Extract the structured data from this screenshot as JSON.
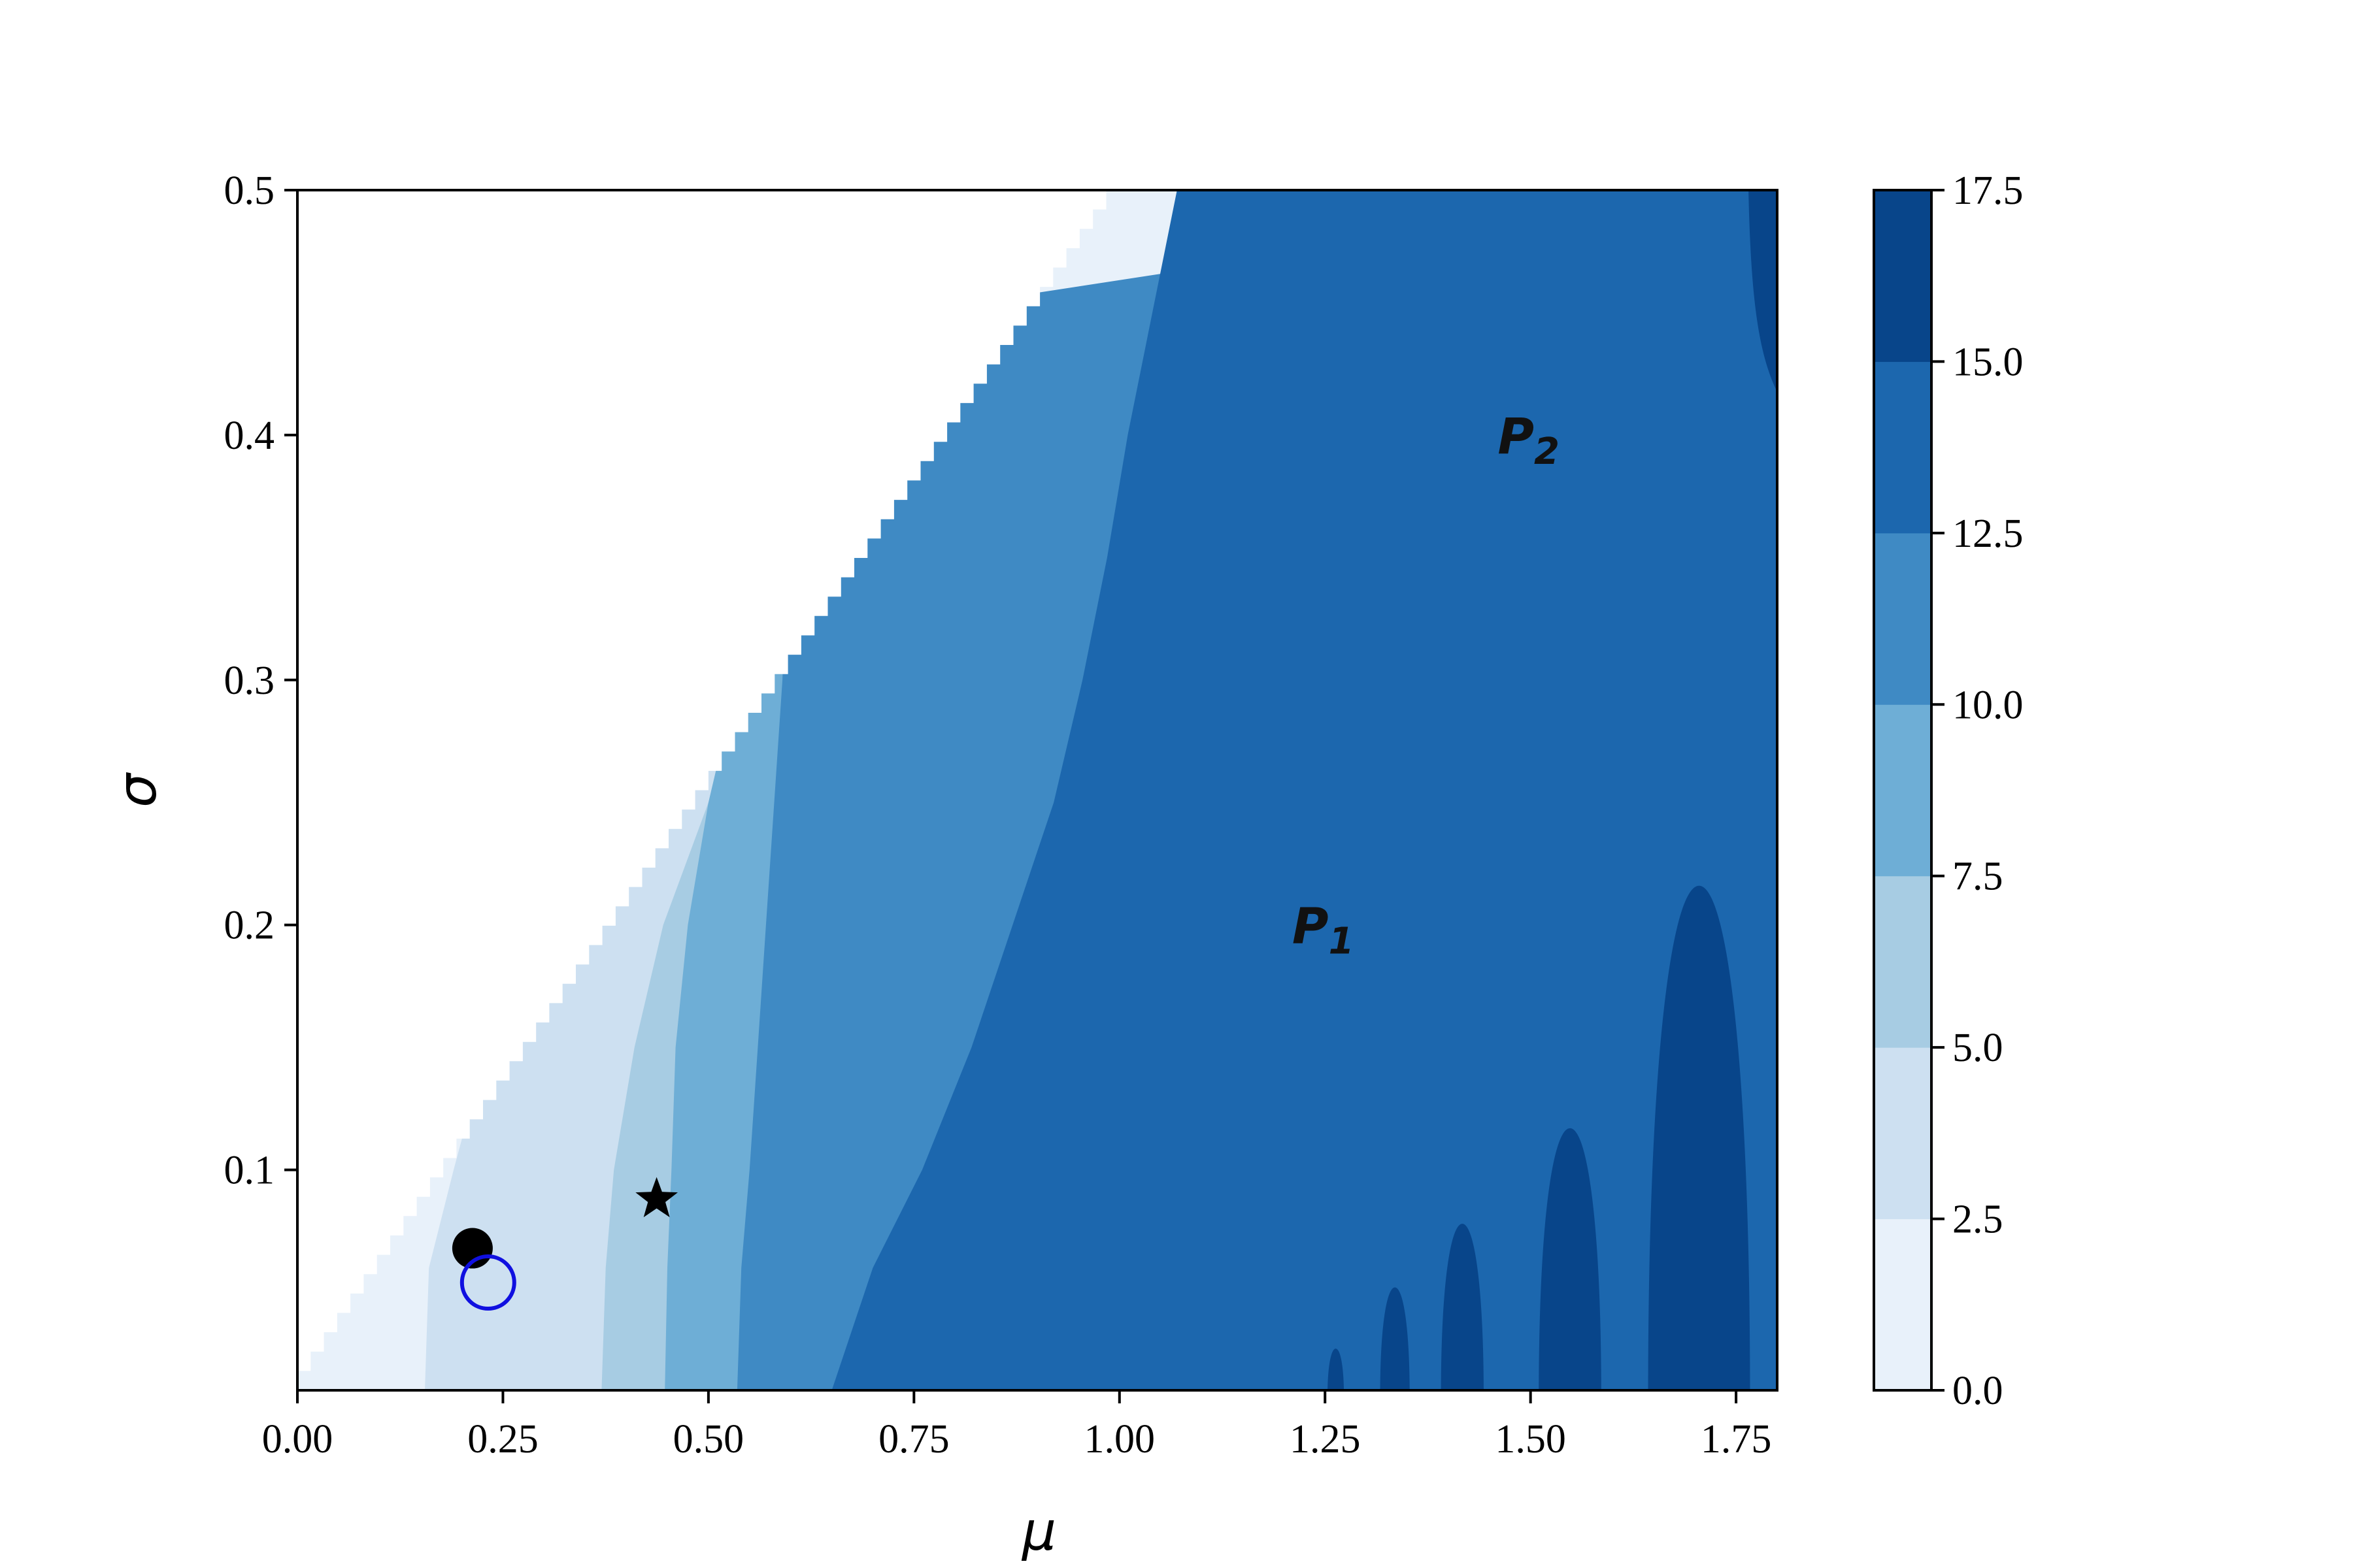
{
  "chart_data": {
    "type": "contourf",
    "title": "",
    "xlabel": "μ",
    "ylabel": "σ",
    "xlim": [
      0.0,
      1.8
    ],
    "ylim": [
      0.01,
      0.5
    ],
    "x_ticks": [
      0.0,
      0.25,
      0.5,
      0.75,
      1.0,
      1.25,
      1.5,
      1.75
    ],
    "x_tick_labels": [
      "0.00",
      "0.25",
      "0.50",
      "0.75",
      "1.00",
      "1.25",
      "1.50",
      "1.75"
    ],
    "y_ticks": [
      0.1,
      0.2,
      0.3,
      0.4,
      0.5
    ],
    "y_tick_labels": [
      "0.1",
      "0.2",
      "0.3",
      "0.4",
      "0.5"
    ],
    "grid": false,
    "colormap": "Blues",
    "colorbar": {
      "levels": [
        0.0,
        2.5,
        5.0,
        7.5,
        10.0,
        12.5,
        15.0,
        17.5
      ],
      "tick_labels": [
        "0.0",
        "2.5",
        "5.0",
        "7.5",
        "10.0",
        "12.5",
        "15.0",
        "17.5"
      ],
      "colors": [
        "#e8f1fa",
        "#cde0f1",
        "#a7cce3",
        "#6eaed6",
        "#3f8ac4",
        "#1c67ae",
        "#08458a"
      ],
      "placement": "right"
    },
    "boundary": [
      [
        0.0,
        0.01
      ],
      [
        1.0,
        0.5
      ]
    ],
    "contours": [
      {
        "level": 2.5,
        "x": [
          0.155,
          0.16,
          0.19,
          0.23,
          0.275,
          0.305,
          0.333
        ]
      },
      {
        "level": 5.0,
        "x": [
          0.37,
          0.375,
          0.385,
          0.41,
          0.445,
          0.5
        ]
      },
      {
        "level": 7.5,
        "x": [
          0.447,
          0.45,
          0.455,
          0.46,
          0.475,
          0.5,
          0.535,
          0.5633
        ]
      },
      {
        "level": 10.0,
        "x": [
          0.535,
          0.54,
          0.55,
          0.56,
          0.57,
          0.58,
          0.59,
          0.595,
          0.597,
          0.7433
        ]
      },
      {
        "level": 12.5,
        "x": [
          0.65,
          0.7,
          0.76,
          0.82,
          0.87,
          0.92,
          0.955,
          0.985,
          1.01,
          1.04,
          1.07
        ]
      },
      {
        "y": [
          0.01,
          0.06,
          0.1,
          0.15,
          0.2,
          0.25,
          0.3,
          0.35,
          0.4,
          0.45,
          0.5
        ]
      }
    ],
    "peaks": [
      {
        "cx": 1.263,
        "half_width": 0.01,
        "top": 0.027
      },
      {
        "cx": 1.335,
        "half_width": 0.018,
        "top": 0.052
      },
      {
        "cx": 1.417,
        "half_width": 0.026,
        "top": 0.078
      },
      {
        "cx": 1.548,
        "half_width": 0.038,
        "top": 0.117
      },
      {
        "cx": 1.705,
        "half_width": 0.062,
        "top": 0.216
      }
    ],
    "markers": [
      {
        "type": "filled-circle",
        "x": 0.213,
        "y": 0.068,
        "color": "#000000"
      },
      {
        "type": "open-circle",
        "x": 0.232,
        "y": 0.054,
        "color": "#1010e0"
      },
      {
        "type": "star",
        "x": 0.437,
        "y": 0.088,
        "color": "#000000"
      }
    ],
    "annotations": [
      {
        "text": "P",
        "sub": "2",
        "x": 1.46,
        "y": 0.4
      },
      {
        "text": "P",
        "sub": "1",
        "x": 1.21,
        "y": 0.2
      }
    ]
  }
}
